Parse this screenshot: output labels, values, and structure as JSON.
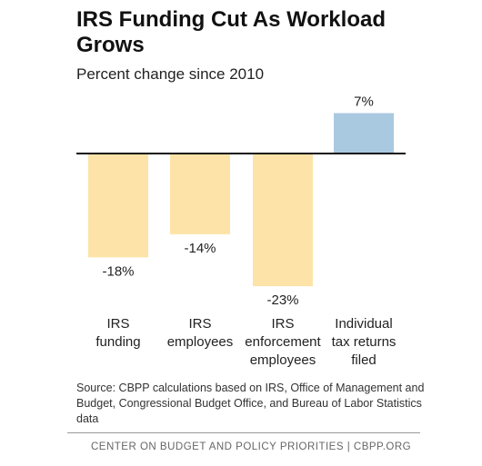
{
  "chart_data": {
    "type": "bar",
    "title": "IRS Funding Cut As Workload Grows",
    "subtitle": "Percent change since 2010",
    "categories": [
      [
        "IRS",
        "funding"
      ],
      [
        "IRS",
        "employees"
      ],
      [
        "IRS",
        "enforcement",
        "employees"
      ],
      [
        "Individual",
        "tax returns",
        "filed"
      ]
    ],
    "values": [
      -18,
      -14,
      -23,
      7
    ],
    "value_labels": [
      "-18%",
      "-14%",
      "-23%",
      "7%"
    ],
    "colors": [
      "#fde3a7",
      "#fde3a7",
      "#fde3a7",
      "#a9c9e0"
    ],
    "ylim": [
      -25,
      10
    ],
    "grid": false,
    "xlabel": "",
    "ylabel": ""
  },
  "source": "Source: CBPP calculations based on IRS, Office of Management and Budget, Congressional Budget Office, and Bureau of Labor Statistics data",
  "footer": "CENTER ON BUDGET AND POLICY PRIORITIES | CBPP.ORG"
}
